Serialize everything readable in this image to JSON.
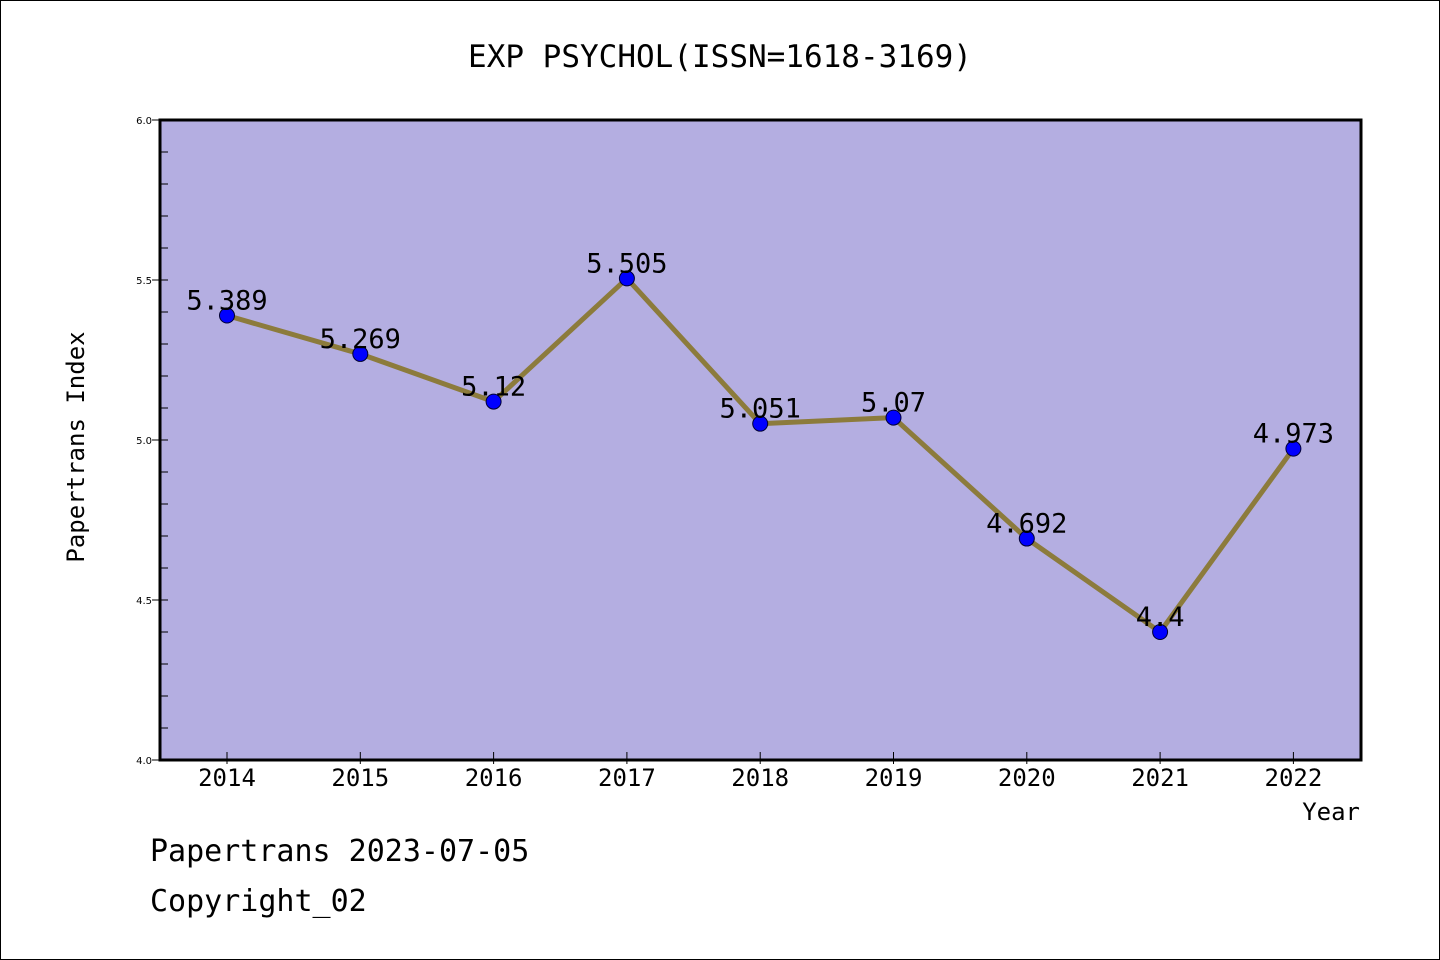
{
  "chart_data": {
    "type": "line",
    "title": "EXP PSYCHOL(ISSN=1618-3169)",
    "xlabel": "Year",
    "ylabel": "Papertrans Index",
    "categories": [
      "2014",
      "2015",
      "2016",
      "2017",
      "2018",
      "2019",
      "2020",
      "2021",
      "2022"
    ],
    "series": [
      {
        "values": [
          5.389,
          5.269,
          5.12,
          5.505,
          5.051,
          5.07,
          4.692,
          4.4,
          4.973
        ],
        "data_labels": [
          "5.389",
          "5.269",
          "5.12",
          "5.505",
          "5.051",
          "5.07",
          "4.692",
          "4.4",
          "4.973"
        ]
      }
    ],
    "ylim": [
      4.0,
      6.0
    ],
    "y_ticks": [
      "4.0",
      "4.5",
      "5.0",
      "5.5",
      "6.0"
    ],
    "grid": false,
    "colors": {
      "plot_background": "#b4aee1",
      "line": "#8c7b3c",
      "marker": "#0000ff"
    }
  },
  "footer": {
    "date_text": "Papertrans 2023-07-05",
    "copyright_text": "Copyright_02"
  }
}
